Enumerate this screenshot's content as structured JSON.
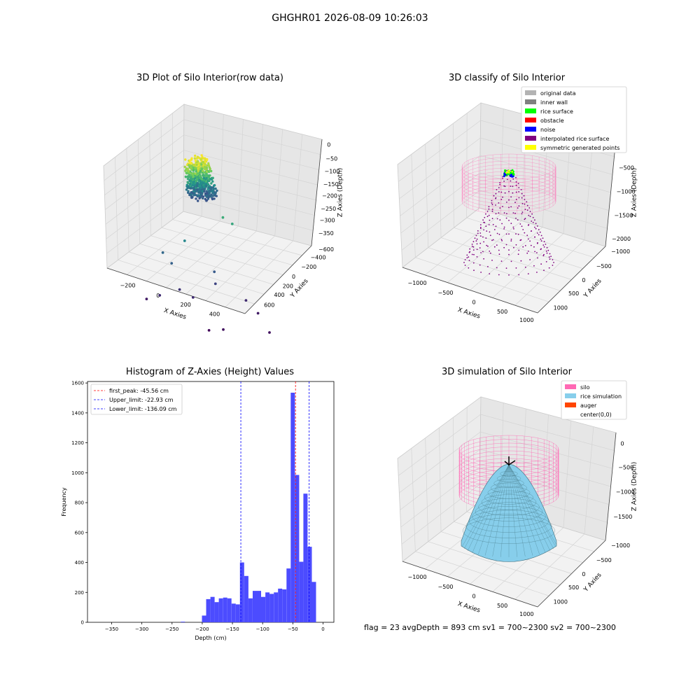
{
  "suptitle": "GHGHR01 2026-08-09 10:26:03",
  "footer": {
    "text": "flag = 23   avgDepth = 893 cm  sv1 = 700~2300  sv2 = 700~2300"
  },
  "colors": {
    "original": "#b3b3b3",
    "inner_wall": "#808080",
    "rice_surface": "#00ff00",
    "obstacle": "#ff0000",
    "noise": "#0000ff",
    "interpolated": "#800080",
    "symmetric": "#ffff00",
    "silo": "#ff69b4",
    "rice_sim": "#87ceeb",
    "auger": "#ff4500",
    "hist_bar": "#4c4cff",
    "peak_line": "#ff0000",
    "limit_line": "#0000ff"
  },
  "chart_data": [
    {
      "type": "scatter",
      "projection": "3d",
      "title": "3D Plot of Silo Interior(row data)",
      "xlabel": "X Axies",
      "ylabel": "Y Axies",
      "zlabel": "Z Axies (Depth)",
      "x_ticks": [
        "−200",
        "0",
        "200",
        "400"
      ],
      "y_ticks": [
        "−600",
        "−400",
        "−200",
        "0",
        "200",
        "400",
        "600"
      ],
      "z_ticks": [
        "0",
        "−50",
        "−100",
        "−150",
        "−200",
        "−250",
        "−300",
        "−350"
      ],
      "xlim": [
        -350,
        550
      ],
      "ylim": [
        -650,
        650
      ],
      "zlim": [
        -380,
        10
      ],
      "cluster": {
        "x": 20,
        "y": 60,
        "z_top": -45,
        "z_bottom": -150,
        "colormap": "viridis"
      },
      "outliers": [
        {
          "x": -260,
          "y": 80,
          "z": -330
        },
        {
          "x": -280,
          "y": 200,
          "z": -350
        },
        {
          "x": -150,
          "y": 140,
          "z": -260
        },
        {
          "x": -120,
          "y": 300,
          "z": -250
        },
        {
          "x": -60,
          "y": 210,
          "z": -320
        },
        {
          "x": 0,
          "y": 160,
          "z": -330
        },
        {
          "x": 200,
          "y": 260,
          "z": -300
        },
        {
          "x": 420,
          "y": 300,
          "z": -330
        },
        {
          "x": 460,
          "y": 230,
          "z": -350
        },
        {
          "x": 300,
          "y": -200,
          "z": -360
        },
        {
          "x": -120,
          "y": -250,
          "z": -370
        },
        {
          "x": -60,
          "y": -310,
          "z": -360
        },
        {
          "x": 150,
          "y": 80,
          "z": -140
        },
        {
          "x": 200,
          "y": 60,
          "z": -150
        },
        {
          "x": -120,
          "y": 40,
          "z": -200
        },
        {
          "x": 160,
          "y": 200,
          "z": -270
        }
      ]
    },
    {
      "type": "scatter",
      "projection": "3d",
      "title": "3D classify of Silo Interior",
      "xlabel": "X Axies",
      "ylabel": "Y Axies",
      "zlabel": "Z Axies (Depth)",
      "x_ticks": [
        "−1000",
        "−500",
        "0",
        "500",
        "1000"
      ],
      "y_ticks": [
        "−1000",
        "−500",
        "0",
        "500",
        "1000"
      ],
      "z_ticks": [
        "0",
        "−500",
        "−1000",
        "−1500",
        "−2000"
      ],
      "legend_position": "upper-right",
      "legend": [
        {
          "label": "original data",
          "color": "#b3b3b3"
        },
        {
          "label": "inner wall",
          "color": "#808080"
        },
        {
          "label": "rice surface",
          "color": "#00ff00"
        },
        {
          "label": "obstacle",
          "color": "#ff0000"
        },
        {
          "label": "noise",
          "color": "#0000ff"
        },
        {
          "label": "interpolated rice surface",
          "color": "#800080"
        },
        {
          "label": "symmetric generated points",
          "color": "#ffff00"
        }
      ]
    },
    {
      "type": "bar",
      "title": "Histogram of Z-Axies (Height) Values",
      "xlabel": "Depth (cm)",
      "ylabel": "Frequency",
      "xlim": [
        -390,
        18
      ],
      "ylim": [
        0,
        1610
      ],
      "x_ticks": [
        -350,
        -300,
        -250,
        -200,
        -150,
        -100,
        -50,
        0
      ],
      "y_ticks": [
        0,
        200,
        400,
        600,
        800,
        1000,
        1200,
        1400,
        1600
      ],
      "bin_width": 7,
      "bins": [
        {
          "x": -232,
          "value": 4
        },
        {
          "x": -197,
          "value": 45
        },
        {
          "x": -190,
          "value": 155
        },
        {
          "x": -183,
          "value": 170
        },
        {
          "x": -176,
          "value": 135
        },
        {
          "x": -169,
          "value": 160
        },
        {
          "x": -162,
          "value": 165
        },
        {
          "x": -155,
          "value": 160
        },
        {
          "x": -148,
          "value": 125
        },
        {
          "x": -141,
          "value": 120
        },
        {
          "x": -134,
          "value": 400
        },
        {
          "x": -127,
          "value": 310
        },
        {
          "x": -120,
          "value": 160
        },
        {
          "x": -113,
          "value": 210
        },
        {
          "x": -106,
          "value": 210
        },
        {
          "x": -99,
          "value": 170
        },
        {
          "x": -92,
          "value": 200
        },
        {
          "x": -85,
          "value": 190
        },
        {
          "x": -78,
          "value": 200
        },
        {
          "x": -71,
          "value": 225
        },
        {
          "x": -64,
          "value": 220
        },
        {
          "x": -57,
          "value": 360
        },
        {
          "x": -50,
          "value": 1535
        },
        {
          "x": -43,
          "value": 985
        },
        {
          "x": -36,
          "value": 405
        },
        {
          "x": -29,
          "value": 860
        },
        {
          "x": -22,
          "value": 505
        },
        {
          "x": -15,
          "value": 270
        }
      ],
      "lines": [
        {
          "label": "first_peak: -45.56 cm",
          "x": -45.56,
          "color": "#ff0000"
        },
        {
          "label": "Upper_limit: -22.93 cm",
          "x": -22.93,
          "color": "#0000ff"
        },
        {
          "label": "Lower_limit: -136.09 cm",
          "x": -136.09,
          "color": "#0000ff"
        }
      ],
      "legend_position": "upper-left"
    },
    {
      "type": "surface",
      "projection": "3d",
      "title": "3D simulation of Silo Interior",
      "xlabel": "X Axies",
      "ylabel": "Y Axies",
      "zlabel": "Z Axies (Depth)",
      "x_ticks": [
        "−1000",
        "−500",
        "0",
        "500",
        "1000"
      ],
      "y_ticks": [
        "−1000",
        "−500",
        "0",
        "500",
        "1000"
      ],
      "z_ticks": [
        "0",
        "−500",
        "−1000",
        "−1500"
      ],
      "legend_position": "upper-right",
      "legend": [
        {
          "label": "silo",
          "color": "#ff69b4"
        },
        {
          "label": "rice simulation",
          "color": "#87ceeb"
        },
        {
          "label": "auger",
          "color": "#ff4500"
        },
        {
          "label": "center(0,0)",
          "color": ""
        }
      ]
    }
  ]
}
